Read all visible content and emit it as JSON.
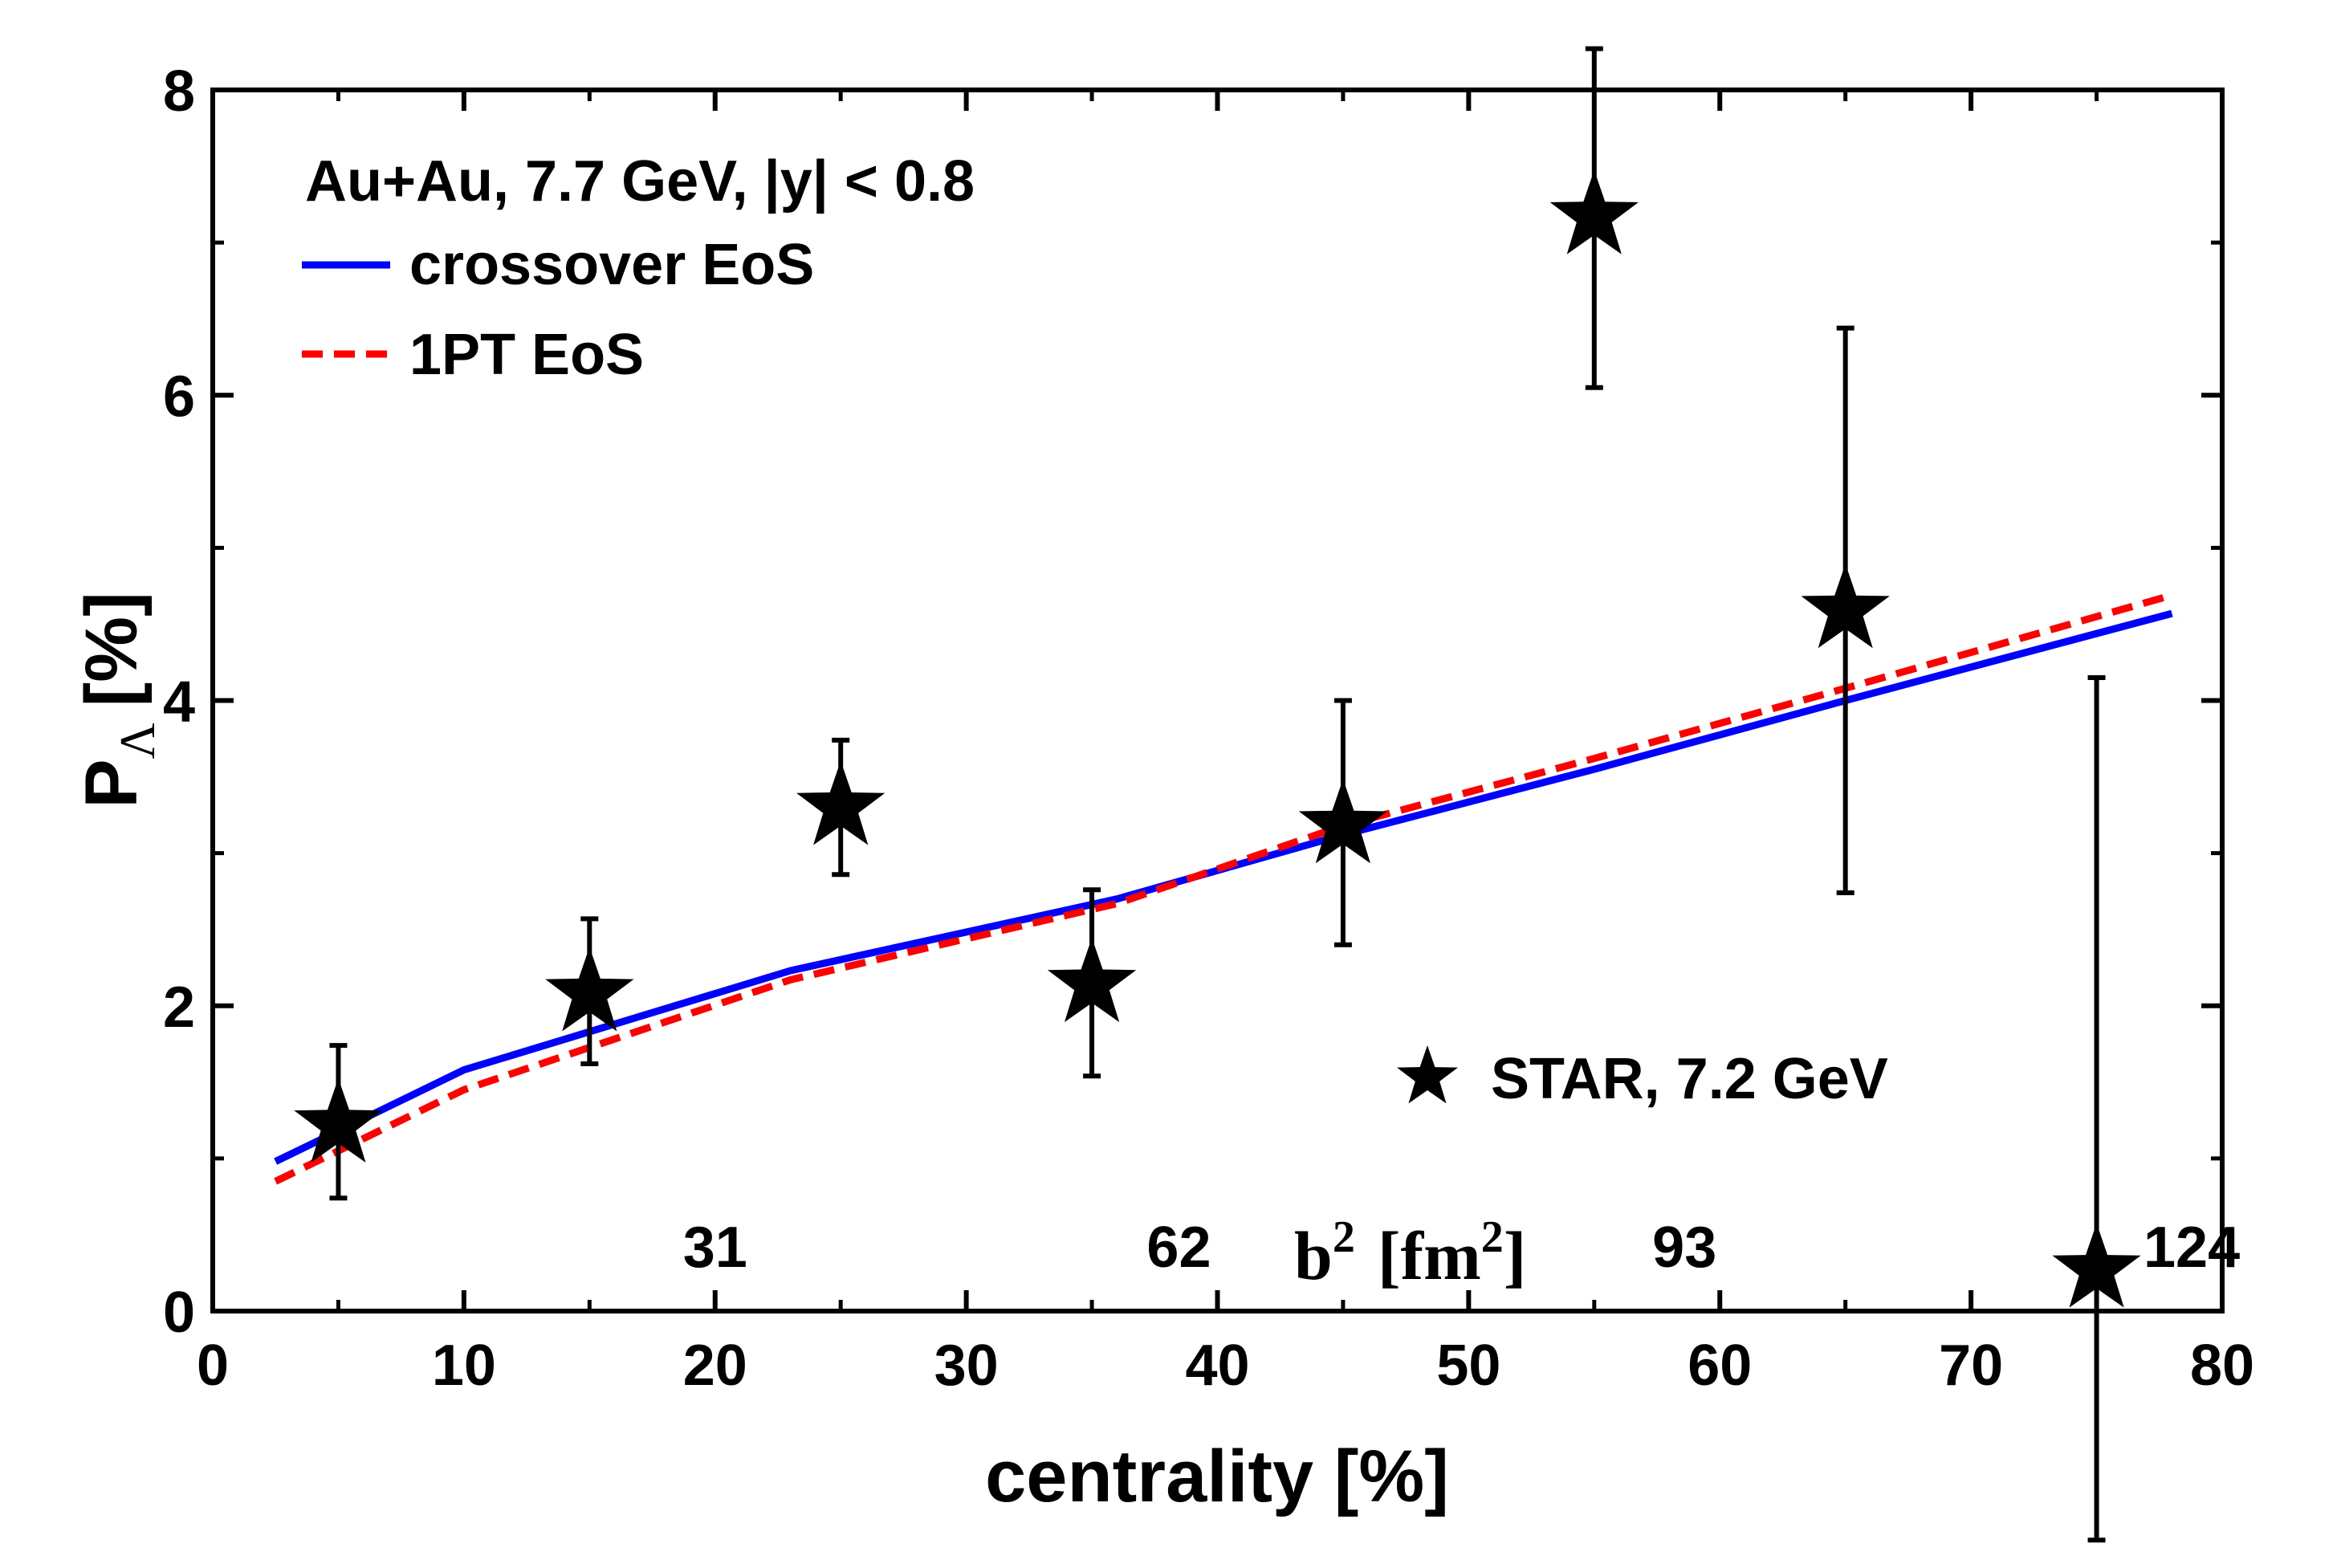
{
  "chart_data": {
    "type": "line",
    "xlabel": "centrality [%]",
    "ylabel_main": "P",
    "ylabel_sub": "Λ",
    "ylabel_unit": "[%]",
    "xlim": [
      0,
      80
    ],
    "ylim": [
      0,
      8
    ],
    "x_ticks": [
      0,
      10,
      20,
      30,
      40,
      50,
      60,
      70,
      80
    ],
    "y_ticks": [
      0,
      2,
      4,
      6,
      8
    ],
    "x_ticks_minor": [
      5,
      15,
      25,
      35,
      45,
      55,
      65,
      75
    ],
    "y_ticks_minor": [
      1,
      3,
      5,
      7
    ],
    "annotation": "Au+Au, 7.7 GeV, |y| < 0.8",
    "b2_axis": {
      "label_base": "b",
      "label_sup1": "2",
      "label_mid": "[fm",
      "label_sup2": "2",
      "label_end": "]",
      "ticks": [
        {
          "value": "31",
          "x": 20
        },
        {
          "value": "62",
          "x": 40
        },
        {
          "value": "93",
          "x": 60
        },
        {
          "value": "124",
          "x": 80
        }
      ]
    },
    "series": [
      {
        "name": "crossover EoS",
        "color": "#0000ff",
        "style": "solid",
        "x": [
          2.5,
          10,
          23,
          36,
          45,
          55,
          65,
          78
        ],
        "y": [
          0.98,
          1.58,
          2.23,
          2.7,
          3.12,
          3.55,
          4.0,
          4.57
        ]
      },
      {
        "name": "1PT EoS",
        "color": "#ff0000",
        "style": "dashed",
        "x": [
          2.5,
          10,
          23,
          36,
          45,
          55,
          65,
          78
        ],
        "y": [
          0.85,
          1.45,
          2.17,
          2.67,
          3.18,
          3.62,
          4.08,
          4.69
        ]
      }
    ],
    "points": {
      "name": "STAR, 7.2 GeV",
      "color": "#000000",
      "marker": "star",
      "x": [
        5,
        15,
        25,
        35,
        45,
        55,
        65,
        75
      ],
      "y": [
        1.22,
        2.08,
        3.3,
        2.14,
        3.18,
        7.17,
        4.59,
        0.27
      ],
      "err_low": [
        0.74,
        1.62,
        2.86,
        1.54,
        2.4,
        6.05,
        2.74,
        -1.5
      ],
      "err_high": [
        1.74,
        2.57,
        3.74,
        2.76,
        4.0,
        8.27,
        6.44,
        4.15
      ]
    }
  }
}
